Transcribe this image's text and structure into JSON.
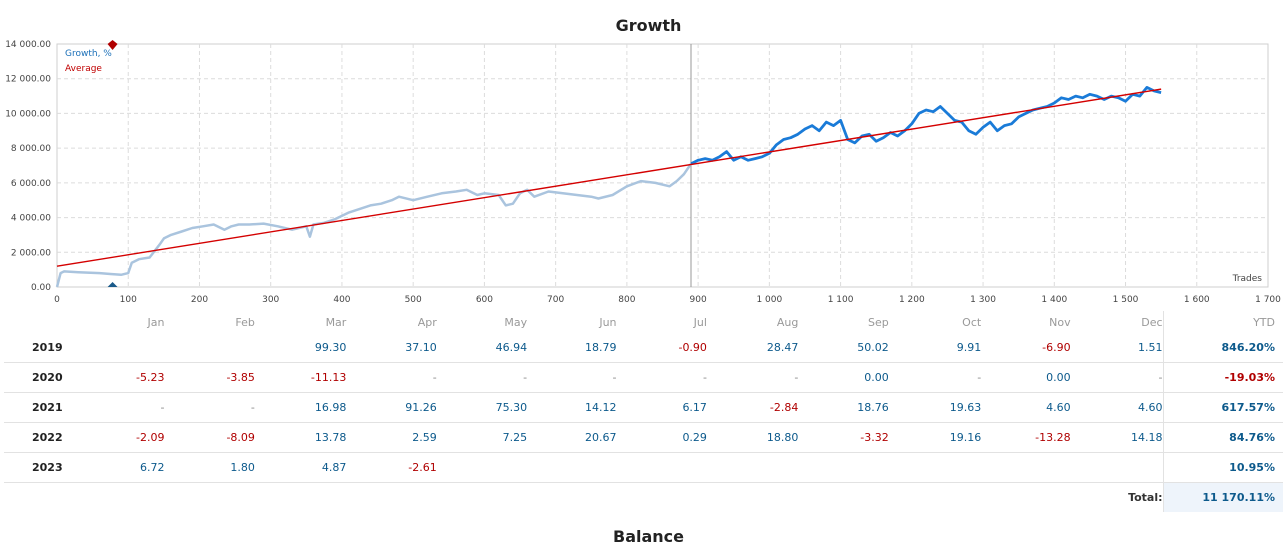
{
  "chart_data": {
    "type": "line",
    "title": "Growth",
    "xlabel": "Trades",
    "ylabel": "",
    "xlim": [
      0,
      1700
    ],
    "ylim": [
      0,
      14000
    ],
    "x_ticks": [
      "0",
      "100",
      "200",
      "300",
      "400",
      "500",
      "600",
      "700",
      "800",
      "900",
      "1 000",
      "1 100",
      "1 200",
      "1 300",
      "1 400",
      "1 500",
      "1 600",
      "1 700"
    ],
    "y_ticks": [
      "0.00",
      "2 000.00",
      "4 000.00",
      "6 000.00",
      "8 000.00",
      "10 000.00",
      "12 000.00",
      "14 000.00"
    ],
    "legend": [
      "Growth, %",
      "Average"
    ],
    "colors": {
      "history": "#aac4de",
      "recent": "#1a7bd8",
      "average": "#d40000",
      "grid": "#dcdcdc"
    },
    "split_x": 890,
    "series": [
      {
        "name": "Growth, %",
        "x": [
          0,
          5,
          10,
          30,
          60,
          75,
          90,
          100,
          105,
          115,
          130,
          145,
          150,
          160,
          175,
          190,
          205,
          220,
          235,
          245,
          255,
          270,
          290,
          310,
          330,
          350,
          355,
          360,
          375,
          390,
          410,
          425,
          440,
          455,
          470,
          480,
          500,
          520,
          540,
          560,
          575,
          590,
          600,
          620,
          630,
          640,
          650,
          660,
          670,
          690,
          710,
          730,
          750,
          760,
          780,
          800,
          820,
          840,
          860,
          870,
          880,
          890,
          900,
          910,
          920,
          930,
          940,
          950,
          960,
          970,
          980,
          990,
          1000,
          1010,
          1020,
          1030,
          1040,
          1050,
          1060,
          1070,
          1080,
          1090,
          1100,
          1110,
          1120,
          1130,
          1140,
          1150,
          1160,
          1170,
          1180,
          1190,
          1200,
          1210,
          1220,
          1230,
          1240,
          1250,
          1260,
          1270,
          1280,
          1290,
          1300,
          1310,
          1320,
          1330,
          1340,
          1350,
          1360,
          1370,
          1380,
          1390,
          1400,
          1410,
          1420,
          1430,
          1440,
          1450,
          1460,
          1470,
          1480,
          1490,
          1500,
          1510,
          1520,
          1530,
          1540,
          1550
        ],
        "values": [
          0,
          800,
          900,
          850,
          800,
          750,
          700,
          800,
          1400,
          1600,
          1700,
          2500,
          2800,
          3000,
          3200,
          3400,
          3500,
          3600,
          3300,
          3500,
          3600,
          3600,
          3650,
          3500,
          3300,
          3500,
          2900,
          3600,
          3700,
          3900,
          4300,
          4500,
          4700,
          4800,
          5000,
          5200,
          5000,
          5200,
          5400,
          5500,
          5600,
          5300,
          5400,
          5300,
          4700,
          4800,
          5400,
          5600,
          5200,
          5500,
          5400,
          5300,
          5200,
          5100,
          5300,
          5800,
          6100,
          6000,
          5800,
          6100,
          6500,
          7100,
          7300,
          7400,
          7300,
          7500,
          7800,
          7300,
          7500,
          7300,
          7400,
          7500,
          7700,
          8200,
          8500,
          8600,
          8800,
          9100,
          9300,
          9000,
          9500,
          9300,
          9600,
          8500,
          8300,
          8700,
          8800,
          8400,
          8600,
          8900,
          8700,
          9000,
          9400,
          10000,
          10200,
          10100,
          10400,
          10000,
          9600,
          9500,
          9000,
          8800,
          9200,
          9500,
          9000,
          9300,
          9400,
          9800,
          10000,
          10200,
          10300,
          10400,
          10600,
          10900,
          10800,
          11000,
          10900,
          11100,
          11000,
          10800,
          11000,
          10900,
          10700,
          11100,
          11000,
          11500,
          11300,
          11200
        ]
      },
      {
        "name": "Average",
        "x": [
          0,
          1550
        ],
        "values": [
          1200,
          11400
        ]
      }
    ],
    "markers": [
      {
        "name": "top marker",
        "x": 78,
        "y": 14000,
        "color": "#b00000"
      },
      {
        "name": "bottom marker",
        "x": 78,
        "y": 0,
        "color": "#1a5a8a"
      }
    ]
  },
  "table": {
    "headers": [
      "Jan",
      "Feb",
      "Mar",
      "Apr",
      "May",
      "Jun",
      "Jul",
      "Aug",
      "Sep",
      "Oct",
      "Nov",
      "Dec",
      "YTD"
    ],
    "rows": [
      {
        "year": "2019",
        "cells": [
          "",
          "",
          "99.30",
          "37.10",
          "46.94",
          "18.79",
          "-0.90",
          "28.47",
          "50.02",
          "9.91",
          "-6.90",
          "1.51"
        ],
        "ytd": "846.20%"
      },
      {
        "year": "2020",
        "cells": [
          "-5.23",
          "-3.85",
          "-11.13",
          "-",
          "-",
          "-",
          "-",
          "-",
          "0.00",
          "-",
          "0.00",
          "-"
        ],
        "ytd": "-19.03%"
      },
      {
        "year": "2021",
        "cells": [
          "-",
          "-",
          "16.98",
          "91.26",
          "75.30",
          "14.12",
          "6.17",
          "-2.84",
          "18.76",
          "19.63",
          "4.60",
          "4.60"
        ],
        "ytd": "617.57%"
      },
      {
        "year": "2022",
        "cells": [
          "-2.09",
          "-8.09",
          "13.78",
          "2.59",
          "7.25",
          "20.67",
          "0.29",
          "18.80",
          "-3.32",
          "19.16",
          "-13.28",
          "14.18"
        ],
        "ytd": "84.76%"
      },
      {
        "year": "2023",
        "cells": [
          "6.72",
          "1.80",
          "4.87",
          "-2.61",
          "",
          "",
          "",
          "",
          "",
          "",
          "",
          ""
        ],
        "ytd": "10.95%"
      }
    ],
    "total_label": "Total:",
    "total_value": "11 170.11%"
  },
  "next_section_title": "Balance"
}
